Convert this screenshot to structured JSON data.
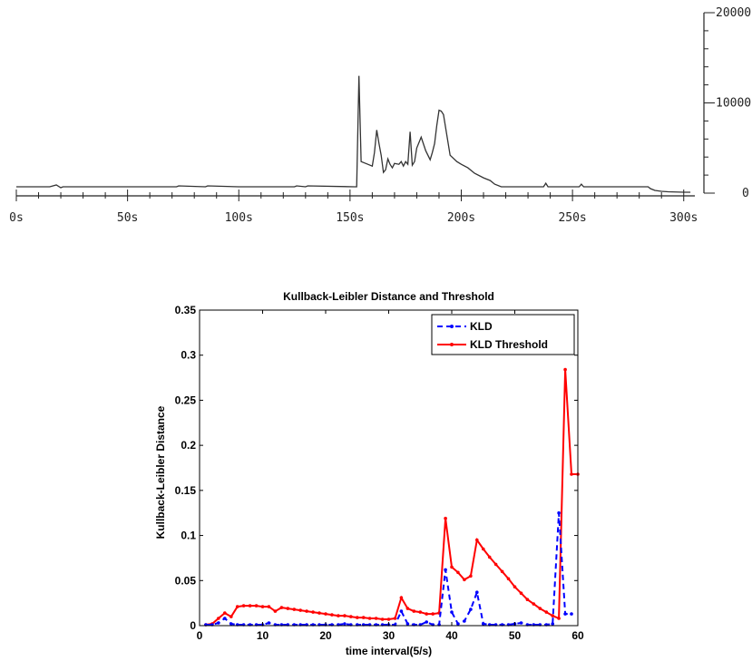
{
  "chart_data": [
    {
      "type": "line",
      "title": "",
      "xlabel": "",
      "ylabel": "",
      "xlim": [
        0,
        305
      ],
      "ylim": [
        0,
        20000
      ],
      "y_axis_side": "right",
      "x_ticks": [
        "0s",
        "50s",
        "100s",
        "150s",
        "200s",
        "250s",
        "300s"
      ],
      "x_tick_values": [
        0,
        50,
        100,
        150,
        200,
        250,
        300
      ],
      "y_ticks": [
        "0",
        "10000",
        "20000"
      ],
      "y_tick_values": [
        0,
        10000,
        20000
      ],
      "colors": {
        "line": "#333333",
        "axis": "#222222"
      },
      "series": [
        {
          "x": [
            0,
            15,
            18,
            20,
            21,
            25,
            50,
            72,
            73,
            85,
            86,
            100,
            125,
            126,
            130,
            131,
            152,
            153,
            154,
            155,
            158,
            160,
            161,
            162,
            163,
            164,
            165,
            166,
            167,
            168,
            169,
            170,
            172,
            173,
            174,
            175,
            176,
            177,
            178,
            179,
            180,
            182,
            184,
            186,
            187,
            188,
            189,
            190,
            191,
            192,
            195,
            198,
            200,
            203,
            206,
            210,
            213,
            215,
            218,
            220,
            237,
            238,
            239,
            253,
            254,
            255,
            270,
            284,
            285,
            287,
            290,
            293,
            300,
            303
          ],
          "y": [
            700,
            700,
            900,
            600,
            700,
            700,
            700,
            700,
            800,
            700,
            800,
            700,
            700,
            800,
            700,
            800,
            700,
            700,
            13000,
            3500,
            3200,
            3000,
            4500,
            7000,
            5500,
            4200,
            2300,
            2600,
            3800,
            3200,
            2800,
            3300,
            3200,
            3500,
            3000,
            3500,
            3200,
            6800,
            3100,
            3500,
            5000,
            6200,
            4700,
            3700,
            4500,
            5500,
            7500,
            9200,
            9100,
            8700,
            4200,
            3500,
            3200,
            2800,
            2200,
            1700,
            1400,
            1000,
            700,
            700,
            700,
            1100,
            700,
            700,
            1000,
            700,
            700,
            700,
            500,
            300,
            200,
            150,
            100,
            100
          ]
        }
      ]
    },
    {
      "type": "line",
      "title": "Kullback-Leibler Distance and Threshold",
      "xlabel": "time interval(5/s)",
      "ylabel": "Kullback-Leibler Distance",
      "xlim": [
        0,
        60
      ],
      "ylim": [
        0,
        0.35
      ],
      "x_ticks": [
        "0",
        "10",
        "20",
        "30",
        "40",
        "50",
        "60"
      ],
      "x_tick_values": [
        0,
        10,
        20,
        30,
        40,
        50,
        60
      ],
      "y_ticks": [
        "0",
        "0.05",
        "0.1",
        "0.15",
        "0.2",
        "0.25",
        "0.3",
        "0.35"
      ],
      "y_tick_values": [
        0,
        0.05,
        0.1,
        0.15,
        0.2,
        0.25,
        0.3,
        0.35
      ],
      "legend_position": "top-right",
      "series": [
        {
          "name": "KLD",
          "color": "#0000ff",
          "style": "dashed",
          "x": [
            1,
            2,
            3,
            4,
            5,
            6,
            7,
            8,
            9,
            10,
            11,
            12,
            13,
            14,
            15,
            16,
            17,
            18,
            19,
            20,
            21,
            22,
            23,
            24,
            25,
            26,
            27,
            28,
            29,
            30,
            31,
            32,
            33,
            34,
            35,
            36,
            37,
            38,
            39,
            40,
            41,
            42,
            43,
            44,
            45,
            46,
            47,
            48,
            49,
            50,
            51,
            52,
            53,
            54,
            55,
            56,
            57,
            58,
            59
          ],
          "y": [
            0.001,
            0.001,
            0.003,
            0.008,
            0.002,
            0.001,
            0.001,
            0.001,
            0.001,
            0.001,
            0.003,
            0.001,
            0.001,
            0.001,
            0.001,
            0.001,
            0.001,
            0.001,
            0.001,
            0.001,
            0.001,
            0.001,
            0.002,
            0.001,
            0.001,
            0.001,
            0.001,
            0.001,
            0.001,
            0.001,
            0.001,
            0.016,
            0.002,
            0.001,
            0.001,
            0.004,
            0.001,
            0.001,
            0.062,
            0.015,
            0.002,
            0.005,
            0.018,
            0.037,
            0.002,
            0.001,
            0.001,
            0.001,
            0.001,
            0.002,
            0.003,
            0.001,
            0.001,
            0.001,
            0.001,
            0.002,
            0.125,
            0.013,
            0.013
          ]
        },
        {
          "name": "KLD Threshold",
          "color": "#ff0000",
          "style": "solid",
          "x": [
            1,
            2,
            3,
            4,
            5,
            6,
            7,
            8,
            9,
            10,
            11,
            12,
            13,
            14,
            15,
            16,
            17,
            18,
            19,
            20,
            21,
            22,
            23,
            24,
            25,
            26,
            27,
            28,
            29,
            30,
            31,
            32,
            33,
            34,
            35,
            36,
            37,
            38,
            39,
            40,
            41,
            42,
            43,
            44,
            45,
            46,
            47,
            48,
            49,
            50,
            51,
            52,
            53,
            54,
            55,
            56,
            57,
            58,
            59,
            60
          ],
          "y": [
            0.001,
            0.002,
            0.008,
            0.014,
            0.01,
            0.021,
            0.022,
            0.022,
            0.022,
            0.021,
            0.021,
            0.016,
            0.02,
            0.019,
            0.018,
            0.017,
            0.016,
            0.015,
            0.014,
            0.013,
            0.012,
            0.011,
            0.011,
            0.01,
            0.009,
            0.009,
            0.008,
            0.008,
            0.007,
            0.007,
            0.008,
            0.031,
            0.019,
            0.016,
            0.015,
            0.013,
            0.013,
            0.014,
            0.119,
            0.065,
            0.059,
            0.051,
            0.055,
            0.095,
            0.085,
            0.076,
            0.068,
            0.06,
            0.052,
            0.043,
            0.036,
            0.029,
            0.024,
            0.019,
            0.015,
            0.011,
            0.008,
            0.284,
            0.168,
            0.168
          ]
        }
      ]
    }
  ]
}
